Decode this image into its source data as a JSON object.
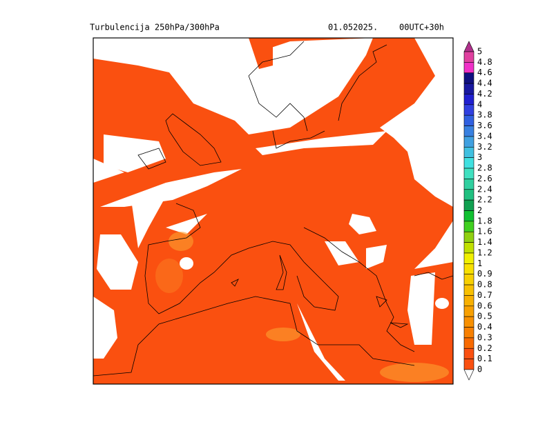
{
  "header": {
    "title": "Turbulencija 250hPa/300hPa",
    "date": "01.052025.",
    "run": "00UTC+30h"
  },
  "legend": {
    "labels": [
      "5",
      "4.8",
      "4.6",
      "4.4",
      "4.2",
      "4",
      "3.8",
      "3.6",
      "3.4",
      "3.2",
      "3",
      "2.8",
      "2.6",
      "2.4",
      "2.2",
      "2",
      "1.8",
      "1.6",
      "1.4",
      "1.2",
      "1",
      "0.9",
      "0.8",
      "0.7",
      "0.6",
      "0.5",
      "0.4",
      "0.3",
      "0.2",
      "0.1",
      "0"
    ],
    "colors": [
      "#b0308c",
      "#e040a0",
      "#f030c8",
      "#101080",
      "#1818a0",
      "#2020d0",
      "#3040e0",
      "#3060e0",
      "#3880e0",
      "#40a0e0",
      "#40c0e0",
      "#40e0e0",
      "#40e0c0",
      "#30d0a0",
      "#20c080",
      "#10a050",
      "#10c030",
      "#40d020",
      "#90d010",
      "#c0e000",
      "#f0f000",
      "#f8e000",
      "#f8d000",
      "#f8c000",
      "#f8b000",
      "#f8a000",
      "#f89000",
      "#f88000",
      "#f86a00",
      "#fa5010"
    ]
  }
}
